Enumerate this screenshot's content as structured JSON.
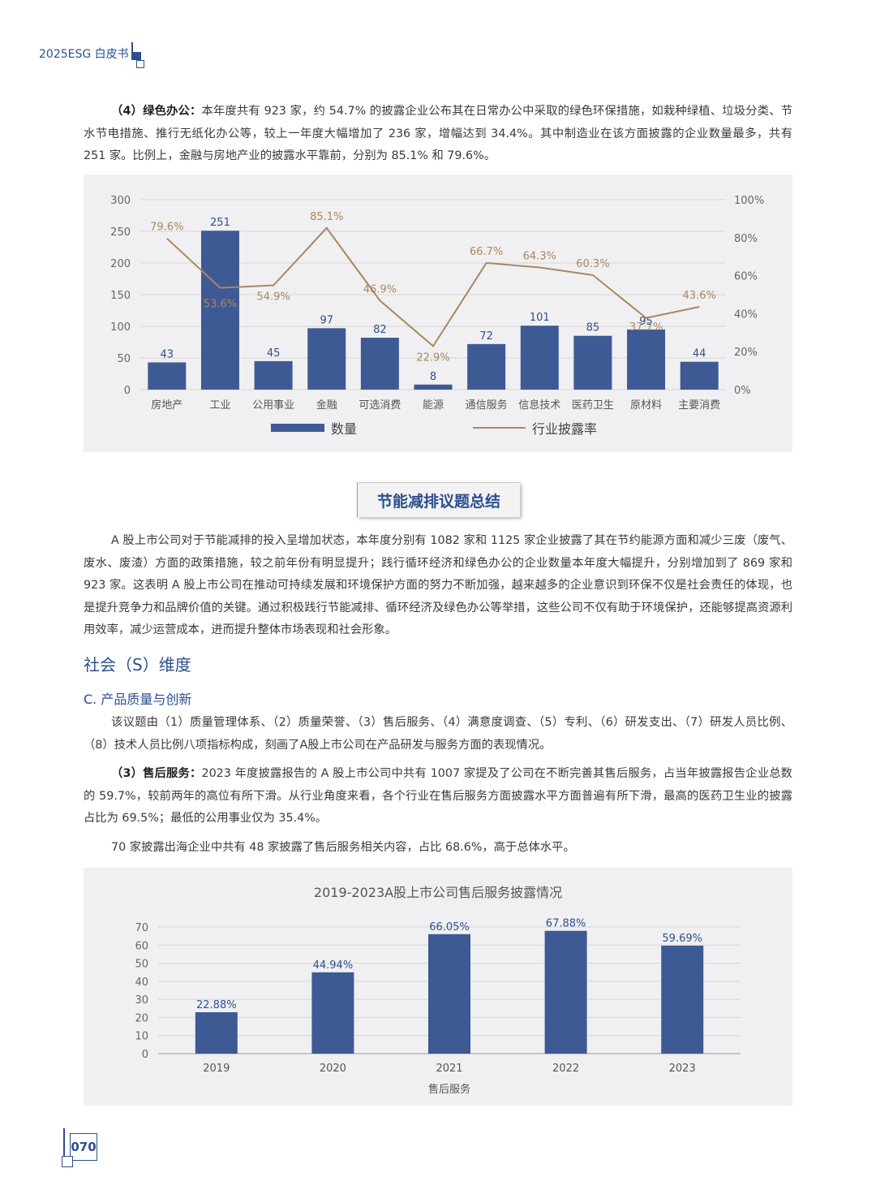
{
  "header": {
    "title": "2025ESG 白皮书"
  },
  "para1": {
    "lead": "（4）绿色办公：",
    "text": "本年度共有 923 家，约 54.7% 的披露企业公布其在日常办公中采取的绿色环保措施，如栽种绿植、垃圾分类、节水节电措施、推行无纸化办公等，较上一年度大幅增加了 236 家，增幅达到 34.4%。其中制造业在该方面披露的企业数量最多，共有 251 家。比例上，金融与房地产业的披露水平靠前，分别为 85.1% 和 79.6%。"
  },
  "chart1_data": {
    "type": "bar+line",
    "categories": [
      "房地产",
      "工业",
      "公用事业",
      "金融",
      "可选消费",
      "能源",
      "通信服务",
      "信息技术",
      "医药卫生",
      "原材料",
      "主要消费"
    ],
    "series": [
      {
        "name": "数量",
        "type": "bar",
        "values": [
          43,
          251,
          45,
          97,
          82,
          8,
          72,
          101,
          85,
          95,
          44
        ],
        "color": "#3e5a95"
      },
      {
        "name": "行业披露率",
        "type": "line",
        "axis": "right",
        "values": [
          79.6,
          53.6,
          54.9,
          85.1,
          46.9,
          22.9,
          66.7,
          64.3,
          60.3,
          37.7,
          43.6
        ],
        "labels": [
          "79.6%",
          "53.6%",
          "54.9%",
          "85.1%",
          "46.9%",
          "22.9%",
          "66.7%",
          "64.3%",
          "60.3%",
          "37.7%",
          "43.6%"
        ],
        "color": "#a88762"
      }
    ],
    "yleft": {
      "ticks": [
        "0",
        "50",
        "100",
        "150",
        "200",
        "250",
        "300"
      ],
      "lim": [
        0,
        300
      ]
    },
    "yright": {
      "ticks": [
        "0%",
        "20%",
        "40%",
        "60%",
        "80%",
        "100%"
      ],
      "lim": [
        0,
        100
      ]
    },
    "legend": "bottom"
  },
  "summary_box": {
    "title": "节能减排议题总结"
  },
  "para2": {
    "text": "A 股上市公司对于节能减排的投入呈增加状态，本年度分别有 1082 家和 1125 家企业披露了其在节约能源方面和减少三废（废气、废水、废渣）方面的政策措施，较之前年份有明显提升；践行循环经济和绿色办公的企业数量本年度大幅提升，分别增加到了 869 家和 923 家。这表明 A 股上市公司在推动可持续发展和环境保护方面的努力不断加强，越来越多的企业意识到环保不仅是社会责任的体现，也是提升竞争力和品牌价值的关键。通过积极践行节能减排、循环经济及绿色办公等举措，这些公司不仅有助于环境保护，还能够提高资源利用效率，减少运营成本，进而提升整体市场表现和社会形象。"
  },
  "section": {
    "title": "社会（S）维度"
  },
  "subsection": {
    "title": "C. 产品质量与创新"
  },
  "para3": {
    "text": "该议题由（1）质量管理体系、（2）质量荣誉、（3）售后服务、（4）满意度调查、（5）专利、（6）研发支出、（7）研发人员比例、（8）技术人员比例八项指标构成，刻画了A股上市公司在产品研发与服务方面的表现情况。"
  },
  "para4": {
    "lead": "（3）售后服务：",
    "text": "2023 年度披露报告的 A 股上市公司中共有 1007 家提及了公司在不断完善其售后服务，占当年披露报告企业总数的 59.7%，较前两年的高位有所下滑。从行业角度来看，各个行业在售后服务方面披露水平方面普遍有所下滑，最高的医药卫生业的披露占比为 69.5%；最低的公用事业仅为 35.4%。"
  },
  "para5": {
    "text": "70 家披露出海企业中共有 48 家披露了售后服务相关内容，占比 68.6%，高于总体水平。"
  },
  "chart2_data": {
    "type": "bar",
    "title": "2019-2023A股上市公司售后服务披露情况",
    "categories": [
      "2019",
      "2020",
      "2021",
      "2022",
      "2023"
    ],
    "values": [
      22.88,
      44.94,
      66.05,
      67.88,
      59.69
    ],
    "labels": [
      "22.88%",
      "44.94%",
      "66.05%",
      "67.88%",
      "59.69%"
    ],
    "yticks": [
      "0",
      "10",
      "20",
      "30",
      "40",
      "50",
      "60",
      "70"
    ],
    "ylim": [
      0,
      70
    ],
    "xlabel": "售后服务",
    "color": "#3e5a95"
  },
  "footer": {
    "page_number": "070"
  }
}
